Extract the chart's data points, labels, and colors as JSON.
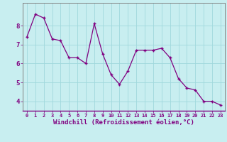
{
  "x": [
    0,
    1,
    2,
    3,
    4,
    5,
    6,
    7,
    8,
    9,
    10,
    11,
    12,
    13,
    14,
    15,
    16,
    17,
    18,
    19,
    20,
    21,
    22,
    23
  ],
  "y": [
    7.4,
    8.6,
    8.4,
    7.3,
    7.2,
    6.3,
    6.3,
    6.0,
    8.1,
    6.5,
    5.4,
    4.9,
    5.6,
    6.7,
    6.7,
    6.7,
    6.8,
    6.3,
    5.2,
    4.7,
    4.6,
    4.0,
    4.0,
    3.8
  ],
  "line_color": "#800080",
  "marker": "+",
  "marker_size": 3,
  "bg_color": "#c8eef0",
  "grid_color": "#a0d8dc",
  "xlabel": "Windchill (Refroidissement éolien,°C)",
  "xlabel_color": "#800080",
  "tick_color": "#800080",
  "axis_color": "#808080",
  "ylim": [
    3.5,
    9.2
  ],
  "xlim": [
    -0.5,
    23.5
  ],
  "yticks": [
    4,
    5,
    6,
    7,
    8
  ],
  "xticks": [
    0,
    1,
    2,
    3,
    4,
    5,
    6,
    7,
    8,
    9,
    10,
    11,
    12,
    13,
    14,
    15,
    16,
    17,
    18,
    19,
    20,
    21,
    22,
    23
  ],
  "xtick_fontsize": 5.0,
  "ytick_fontsize": 6.5,
  "xlabel_fontsize": 6.5,
  "linewidth": 0.9,
  "markeredgewidth": 1.0
}
